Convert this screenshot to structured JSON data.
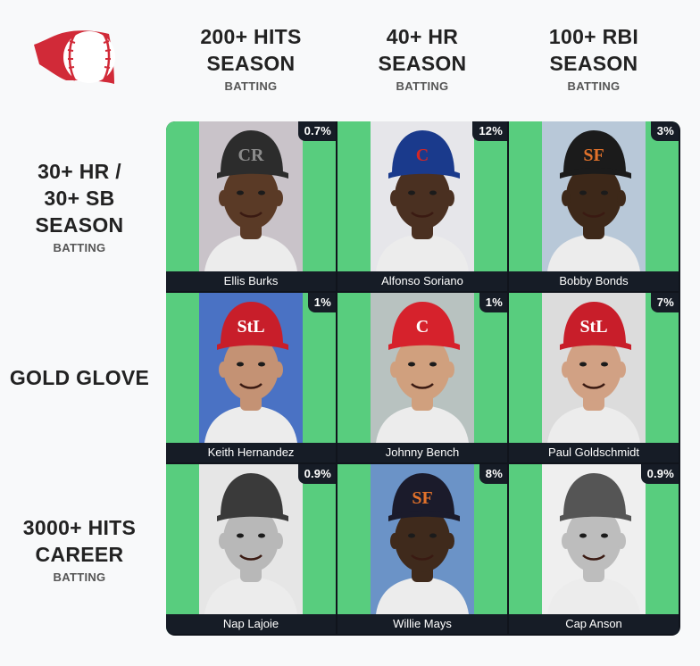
{
  "columns": [
    {
      "title_line1": "200+ HITS",
      "title_line2": "SEASON",
      "sub": "BATTING"
    },
    {
      "title_line1": "40+ HR",
      "title_line2": "SEASON",
      "sub": "BATTING"
    },
    {
      "title_line1": "100+ RBI",
      "title_line2": "SEASON",
      "sub": "BATTING"
    }
  ],
  "rows": [
    {
      "line1": "30+ HR /",
      "line2": "30+ SB",
      "line3": "SEASON",
      "sub": "BATTING"
    },
    {
      "line1": "GOLD GLOVE"
    },
    {
      "line1": "3000+ HITS",
      "line2": "CAREER",
      "sub": "BATTING"
    }
  ],
  "cells": [
    [
      {
        "name": "Ellis Burks",
        "pct": "0.7%",
        "cap_logo": "CR",
        "cap_color": "#2c2c2c",
        "logo_color": "#8c8c8c",
        "skin": "#5a3a26",
        "bg": "#c9c3c9"
      },
      {
        "name": "Alfonso Soriano",
        "pct": "12%",
        "cap_logo": "C",
        "cap_color": "#1a3a8c",
        "logo_color": "#d42626",
        "skin": "#4a3021",
        "bg": "#e6e6ea"
      },
      {
        "name": "Bobby Bonds",
        "pct": "3%",
        "cap_logo": "SF",
        "cap_color": "#1b1b1b",
        "logo_color": "#e2722b",
        "skin": "#3d2819",
        "bg": "#b8c8d8"
      }
    ],
    [
      {
        "name": "Keith Hernandez",
        "pct": "1%",
        "cap_logo": "StL",
        "cap_color": "#c81e2a",
        "logo_color": "#ffffff",
        "skin": "#c49274",
        "bg": "#4a72c4"
      },
      {
        "name": "Johnny Bench",
        "pct": "1%",
        "cap_logo": "C",
        "cap_color": "#d6222c",
        "logo_color": "#ffffff",
        "skin": "#d0a07e",
        "bg": "#b8c2c0"
      },
      {
        "name": "Paul Goldschmidt",
        "pct": "7%",
        "cap_logo": "StL",
        "cap_color": "#c81e2a",
        "logo_color": "#ffffff",
        "skin": "#d1a184",
        "bg": "#dcdcdc"
      }
    ],
    [
      {
        "name": "Nap Lajoie",
        "pct": "0.9%",
        "cap_logo": "",
        "cap_color": "#3a3a3a",
        "logo_color": "#3a3a3a",
        "skin": "#b8b8b8",
        "bg": "#e6e6e6"
      },
      {
        "name": "Willie Mays",
        "pct": "8%",
        "cap_logo": "SF",
        "cap_color": "#1b1b2b",
        "logo_color": "#e2722b",
        "skin": "#3f2a1c",
        "bg": "#6b93c7"
      },
      {
        "name": "Cap Anson",
        "pct": "0.9%",
        "cap_logo": "",
        "cap_color": "#555555",
        "logo_color": "#555555",
        "skin": "#bdbdbd",
        "bg": "#efefef"
      }
    ]
  ],
  "colors": {
    "cell_green": "#58cd7e",
    "label_dark": "#161c26",
    "logo_red": "#d12a38"
  },
  "icons": {
    "logo": "baseball-flag-logo-icon"
  }
}
